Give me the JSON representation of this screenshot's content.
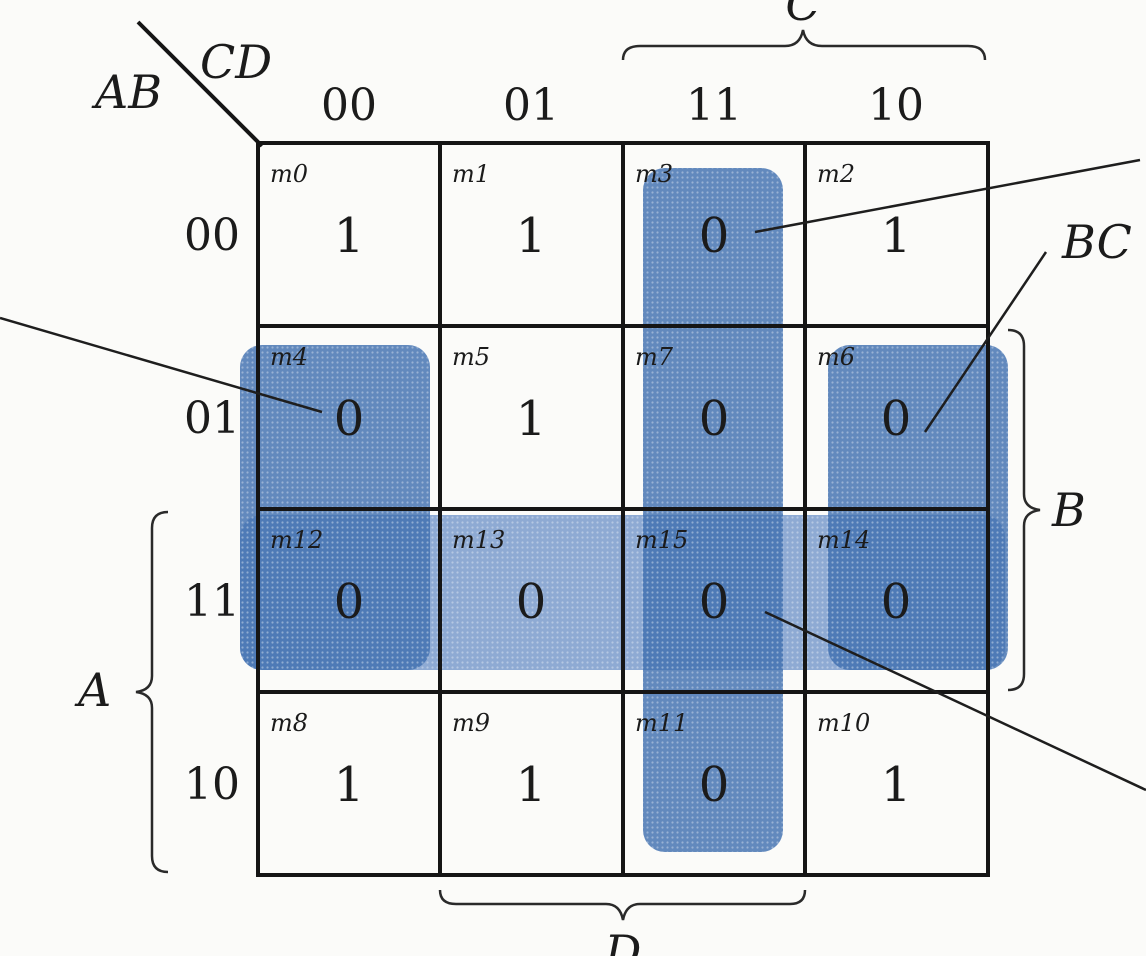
{
  "kmap": {
    "corner_row_var": "AB",
    "corner_col_var": "CD",
    "col_headers": [
      "00",
      "01",
      "11",
      "10"
    ],
    "row_headers": [
      "00",
      "01",
      "11",
      "10"
    ],
    "cells": [
      [
        {
          "term": "m0",
          "value": "1"
        },
        {
          "term": "m1",
          "value": "1"
        },
        {
          "term": "m3",
          "value": "0"
        },
        {
          "term": "m2",
          "value": "1"
        }
      ],
      [
        {
          "term": "m4",
          "value": "0"
        },
        {
          "term": "m5",
          "value": "1"
        },
        {
          "term": "m7",
          "value": "0"
        },
        {
          "term": "m6",
          "value": "0"
        }
      ],
      [
        {
          "term": "m12",
          "value": "0"
        },
        {
          "term": "m13",
          "value": "0"
        },
        {
          "term": "m15",
          "value": "0"
        },
        {
          "term": "m14",
          "value": "0"
        }
      ],
      [
        {
          "term": "m8",
          "value": "1"
        },
        {
          "term": "m9",
          "value": "1"
        },
        {
          "term": "m11",
          "value": "0"
        },
        {
          "term": "m10",
          "value": "1"
        }
      ]
    ],
    "brace_labels": {
      "top": "C",
      "right": "B",
      "left": "A",
      "bottom": "D"
    },
    "callout_labels": [
      "BC"
    ],
    "group_color": "#3f6fb0"
  }
}
